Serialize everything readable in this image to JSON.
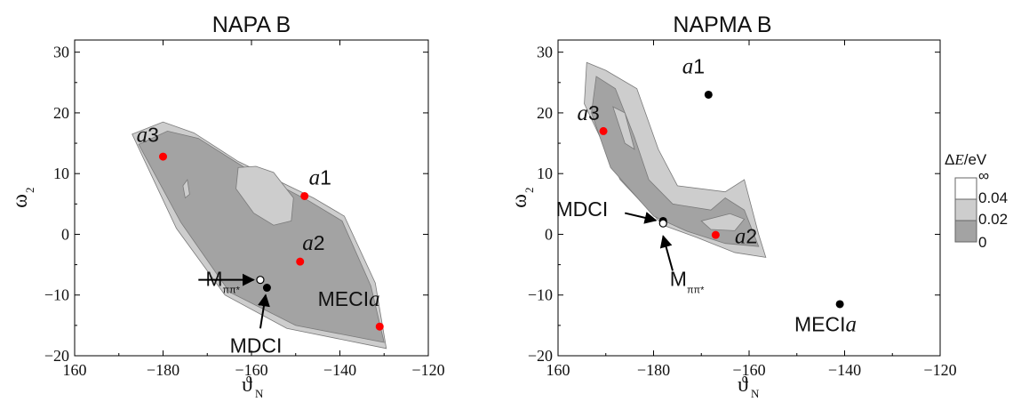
{
  "chart_data": [
    {
      "type": "scatter",
      "title": "NAPA B",
      "xlabel": "ϑ",
      "xlabel_sub": "N",
      "ylabel": "ω",
      "ylabel_sub": "2",
      "xlim": [
        -200,
        -120
      ],
      "ylim": [
        -20,
        32
      ],
      "x_ticks": [
        "160",
        "−180",
        "−160",
        "−140",
        "−120"
      ],
      "y_ticks": [
        "30",
        "20",
        "10",
        "0",
        "−10",
        "−20"
      ],
      "points": [
        {
          "name": "a3",
          "x": -180,
          "y": 12.8,
          "color": "#ff0000",
          "label": {
            "italic": "a",
            "text": "3"
          }
        },
        {
          "name": "a1",
          "x": -148,
          "y": 6.3,
          "color": "#ff0000",
          "label": {
            "italic": "a",
            "text": "1"
          }
        },
        {
          "name": "a2",
          "x": -149,
          "y": -4.5,
          "color": "#ff0000",
          "label": {
            "italic": "a",
            "text": "2"
          }
        },
        {
          "name": "MECIa",
          "x": -131,
          "y": -15.2,
          "color": "#ff0000",
          "label": {
            "text": "MECI",
            "italic_suffix": "a"
          }
        },
        {
          "name": "MDCI",
          "x": -156.5,
          "y": -8.8,
          "color": "#000000",
          "label": {
            "text": "MDCI"
          }
        },
        {
          "name": "Mpipi",
          "x": -158,
          "y": -7.5,
          "color": "#000000",
          "hollow": true,
          "label": {
            "text": "M",
            "sub": "ππ*"
          }
        }
      ],
      "regions": [
        {
          "level": "0.02–0.04",
          "color": "#cdcdcd"
        },
        {
          "level": "0–0.02",
          "color": "#a3a3a3"
        }
      ]
    },
    {
      "type": "scatter",
      "title": "NAPMA B",
      "xlabel": "ϑ",
      "xlabel_sub": "N",
      "ylabel": "ω",
      "ylabel_sub": "2",
      "xlim": [
        -200,
        -120
      ],
      "ylim": [
        -20,
        32
      ],
      "x_ticks": [
        "160",
        "−180",
        "−160",
        "−140",
        "−120"
      ],
      "y_ticks": [
        "30",
        "20",
        "10",
        "0",
        "−10",
        "−20"
      ],
      "points": [
        {
          "name": "a1",
          "x": -168.5,
          "y": 23,
          "color": "#000000",
          "label": {
            "italic": "a",
            "text": "1"
          }
        },
        {
          "name": "a3",
          "x": -190.5,
          "y": 17,
          "color": "#ff0000",
          "label": {
            "italic": "a",
            "text": "3"
          }
        },
        {
          "name": "MDCI",
          "x": -178,
          "y": 2.2,
          "color": "#000000",
          "label": {
            "text": "MDCI"
          }
        },
        {
          "name": "Mpipi",
          "x": -178,
          "y": 1.8,
          "color": "#000000",
          "hollow": true,
          "label": {
            "text": "M",
            "sub": "ππ*"
          }
        },
        {
          "name": "a2",
          "x": -167,
          "y": -0.1,
          "color": "#ff0000",
          "label": {
            "italic": "a",
            "text": "2"
          }
        },
        {
          "name": "MECIa",
          "x": -141,
          "y": -11.5,
          "color": "#000000",
          "label": {
            "text": "MECI",
            "italic_suffix": "a"
          }
        }
      ]
    }
  ],
  "legend": {
    "title": "ΔE/eV",
    "title_italic": "E",
    "levels": [
      "∞",
      "0.04",
      "0.02",
      "0"
    ],
    "colors": [
      "#ffffff",
      "#cdcdcd",
      "#a3a3a3"
    ]
  }
}
